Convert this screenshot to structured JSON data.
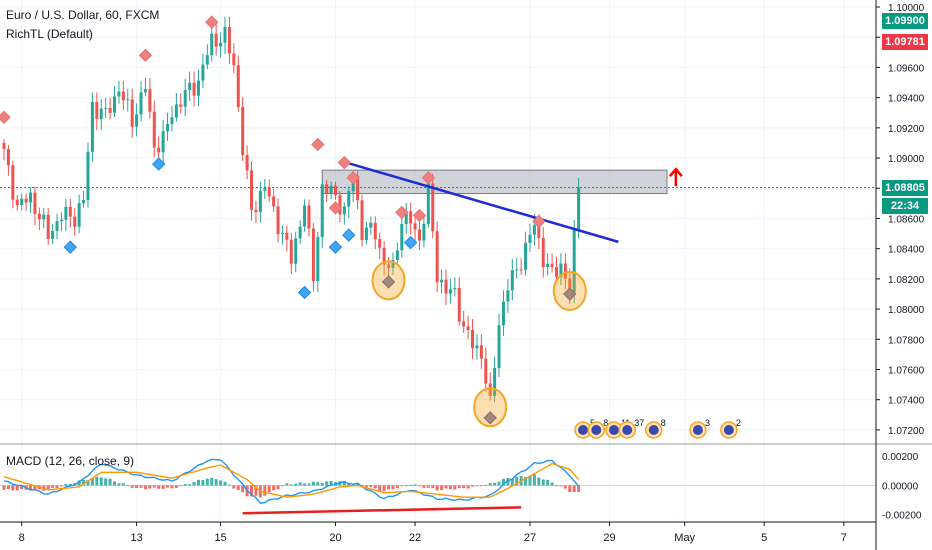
{
  "header": {
    "symbol_title": "Euro / U.S. Dollar, 60, FXCM",
    "indicator_1": "RichTL (Default)",
    "indicator_2": "MACD (12, 26, close, 9)"
  },
  "price_tags": {
    "high": "1.09900",
    "low": "1.09781",
    "last": "1.08805",
    "countdown": "22:34"
  },
  "colors": {
    "bull": "#26a69a",
    "bear": "#ef5350",
    "trendline": "#1f2bd6",
    "zone": "#b2b5be",
    "macd": "#2196f3",
    "signal": "#ff9800",
    "tag_green": "#089981",
    "tag_red": "#f23645",
    "tag_dark": "#131722",
    "marker_top": "#f08080",
    "marker_bottom": "#42a5f5",
    "circle": "#f5a623",
    "divergence": "#e91e1e",
    "arrow": "#ff0000"
  },
  "chart_data": [
    {
      "type": "candlestick",
      "title": "Euro / U.S. Dollar, 60, FXCM",
      "ylim": [
        1.0712,
        1.1002
      ],
      "y_ticks": [
        "1.10000",
        "1.09800",
        "1.09600",
        "1.09400",
        "1.09200",
        "1.09000",
        "1.08800",
        "1.08600",
        "1.08400",
        "1.08200",
        "1.08000",
        "1.07800",
        "1.07600",
        "1.07400",
        "1.07200"
      ],
      "x_ticks": [
        {
          "label": "8",
          "idx": 4
        },
        {
          "label": "13",
          "idx": 30
        },
        {
          "label": "15",
          "idx": 49
        },
        {
          "label": "20",
          "idx": 75
        },
        {
          "label": "22",
          "idx": 93
        },
        {
          "label": "27",
          "idx": 119
        },
        {
          "label": "29",
          "idx": 137
        },
        {
          "label": "May",
          "idx": 154
        },
        {
          "label": "5",
          "idx": 172
        },
        {
          "label": "7",
          "idx": 190
        }
      ],
      "candle_count": 131,
      "anchors": [
        [
          0,
          1.0903
        ],
        [
          3,
          1.0868
        ],
        [
          6,
          1.0874
        ],
        [
          10,
          1.0849
        ],
        [
          13,
          1.0862
        ],
        [
          16,
          1.0861
        ],
        [
          18,
          1.0872
        ],
        [
          20,
          1.0935
        ],
        [
          23,
          1.0928
        ],
        [
          26,
          1.0946
        ],
        [
          29,
          1.0925
        ],
        [
          32,
          1.0947
        ],
        [
          34,
          1.0908
        ],
        [
          36,
          1.0912
        ],
        [
          38,
          1.093
        ],
        [
          41,
          1.0942
        ],
        [
          44,
          1.0951
        ],
        [
          47,
          1.0978
        ],
        [
          50,
          1.098
        ],
        [
          52,
          1.0962
        ],
        [
          54,
          1.0906
        ],
        [
          56,
          1.0865
        ],
        [
          59,
          1.0881
        ],
        [
          62,
          1.0857
        ],
        [
          65,
          1.0833
        ],
        [
          68,
          1.087
        ],
        [
          70,
          1.0822
        ],
        [
          72,
          1.088
        ],
        [
          75,
          1.0876
        ],
        [
          77,
          1.0863
        ],
        [
          79,
          1.089
        ],
        [
          81,
          1.0851
        ],
        [
          84,
          1.0852
        ],
        [
          86,
          1.0829
        ],
        [
          88,
          1.0827
        ],
        [
          90,
          1.086
        ],
        [
          92,
          1.0858
        ],
        [
          94,
          1.0846
        ],
        [
          96,
          1.0877
        ],
        [
          98,
          1.0823
        ],
        [
          100,
          1.0812
        ],
        [
          102,
          1.081
        ],
        [
          104,
          1.0788
        ],
        [
          106,
          1.0776
        ],
        [
          108,
          1.0771
        ],
        [
          110,
          1.0735
        ],
        [
          112,
          1.0792
        ],
        [
          114,
          1.0815
        ],
        [
          116,
          1.0826
        ],
        [
          118,
          1.084
        ],
        [
          120,
          1.0856
        ],
        [
          122,
          1.0834
        ],
        [
          124,
          1.0822
        ],
        [
          126,
          1.083
        ],
        [
          128,
          1.0812
        ],
        [
          130,
          1.088
        ]
      ],
      "resistance_zone": {
        "x_start": 72,
        "x_end": 150,
        "y_low": 1.08765,
        "y_high": 1.0892
      },
      "last_price": 1.08805,
      "trendline": [
        [
          78,
          1.08965
        ],
        [
          139,
          1.08445
        ]
      ],
      "target_arrow_x": 152,
      "top_markers": [
        [
          0,
          1.0927
        ],
        [
          32,
          1.0968
        ],
        [
          47,
          1.099
        ],
        [
          71,
          1.0909
        ],
        [
          77,
          1.0897
        ],
        [
          79,
          1.0887
        ],
        [
          75,
          1.0867
        ],
        [
          90,
          1.0864
        ],
        [
          94,
          1.0862
        ],
        [
          96,
          1.0887
        ],
        [
          121,
          1.0858
        ]
      ],
      "bottom_markers": [
        [
          15,
          1.0841
        ],
        [
          35,
          1.0896
        ],
        [
          68,
          1.0811
        ],
        [
          75,
          1.0841
        ],
        [
          78,
          1.0849
        ],
        [
          92,
          1.0844
        ]
      ],
      "circled_lows": [
        [
          87,
          1.0819,
          1.0818
        ],
        [
          110,
          1.0735,
          1.0728
        ],
        [
          128,
          1.0812,
          1.081
        ]
      ],
      "event_badges": [
        {
          "idx": 131,
          "label": "5"
        },
        {
          "idx": 134,
          "label": "8"
        },
        {
          "idx": 138,
          "label": "11"
        },
        {
          "idx": 141,
          "label": "37"
        },
        {
          "idx": 147,
          "label": "8"
        },
        {
          "idx": 157,
          "label": "3"
        },
        {
          "idx": 164,
          "label": "2"
        }
      ]
    },
    {
      "type": "line+histogram",
      "title": "MACD (12, 26, close, 9)",
      "ylim": [
        -0.0025,
        0.0027
      ],
      "y_ticks": [
        "0.00200",
        "0.00000",
        "-0.00200"
      ],
      "macd_anchors": [
        [
          0,
          0.0003
        ],
        [
          10,
          -0.0006
        ],
        [
          17,
          0.0002
        ],
        [
          22,
          0.0015
        ],
        [
          30,
          0.0007
        ],
        [
          38,
          0.0003
        ],
        [
          46,
          0.0017
        ],
        [
          49,
          0.0018
        ],
        [
          55,
          -0.0003
        ],
        [
          58,
          -0.0012
        ],
        [
          64,
          -0.0007
        ],
        [
          70,
          -0.0004
        ],
        [
          76,
          0.0002
        ],
        [
          80,
          0.0001
        ],
        [
          86,
          -0.0009
        ],
        [
          92,
          -0.0003
        ],
        [
          98,
          -0.0009
        ],
        [
          104,
          -0.001
        ],
        [
          110,
          -0.0007
        ],
        [
          114,
          0.0003
        ],
        [
          120,
          0.0015
        ],
        [
          124,
          0.0017
        ],
        [
          128,
          0.0007
        ],
        [
          130,
          -0.0001
        ]
      ],
      "signal_anchors": [
        [
          0,
          0.0006
        ],
        [
          10,
          -0.0003
        ],
        [
          17,
          -0.0001
        ],
        [
          22,
          0.0009
        ],
        [
          30,
          0.0009
        ],
        [
          38,
          0.0005
        ],
        [
          46,
          0.0012
        ],
        [
          49,
          0.0014
        ],
        [
          55,
          0.0004
        ],
        [
          58,
          -0.0004
        ],
        [
          64,
          -0.0008
        ],
        [
          70,
          -0.0006
        ],
        [
          76,
          -0.0001
        ],
        [
          80,
          0.0
        ],
        [
          86,
          -0.0005
        ],
        [
          92,
          -0.0004
        ],
        [
          98,
          -0.0006
        ],
        [
          104,
          -0.0008
        ],
        [
          110,
          -0.0008
        ],
        [
          114,
          -0.0002
        ],
        [
          120,
          0.0008
        ],
        [
          124,
          0.0015
        ],
        [
          128,
          0.0011
        ],
        [
          130,
          0.0004
        ]
      ],
      "divergence_line": [
        [
          54,
          -0.0019
        ],
        [
          117,
          -0.0015
        ]
      ]
    }
  ]
}
